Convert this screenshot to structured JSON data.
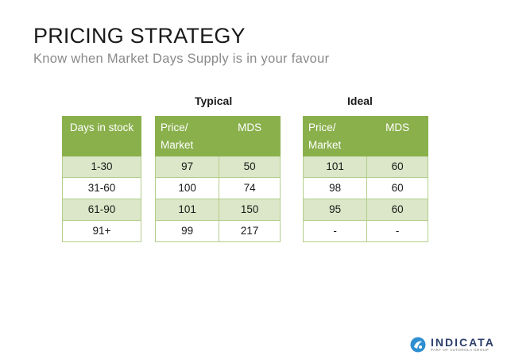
{
  "header": {
    "title": "PRICING STRATEGY",
    "subtitle": "Know when Market Days Supply is in your favour"
  },
  "groups": {
    "typical": "Typical",
    "ideal": "Ideal"
  },
  "days_table": {
    "header": "Days in stock",
    "rows": [
      "1-30",
      "31-60",
      "61-90",
      "91+"
    ]
  },
  "typical_table": {
    "col_price": "Price/ Market",
    "col_mds": "MDS",
    "rows": [
      {
        "price": "97",
        "mds": "50"
      },
      {
        "price": "100",
        "mds": "74"
      },
      {
        "price": "101",
        "mds": "150"
      },
      {
        "price": "99",
        "mds": "217"
      }
    ]
  },
  "ideal_table": {
    "col_price": "Price/ Market",
    "col_mds": "MDS",
    "rows": [
      {
        "price": "101",
        "mds": "60"
      },
      {
        "price": "98",
        "mds": "60"
      },
      {
        "price": "95",
        "mds": "60"
      },
      {
        "price": "-",
        "mds": "-"
      }
    ]
  },
  "logo": {
    "name": "INDICATA",
    "tagline": "PART OF AUTOROLA GROUP",
    "icon": "indicata-logo-icon"
  },
  "colors": {
    "header_green": "#8ab04c",
    "row_tint": "#dbe7c8",
    "border": "#b3cd8a",
    "logo_blue": "#2b3e6b"
  }
}
